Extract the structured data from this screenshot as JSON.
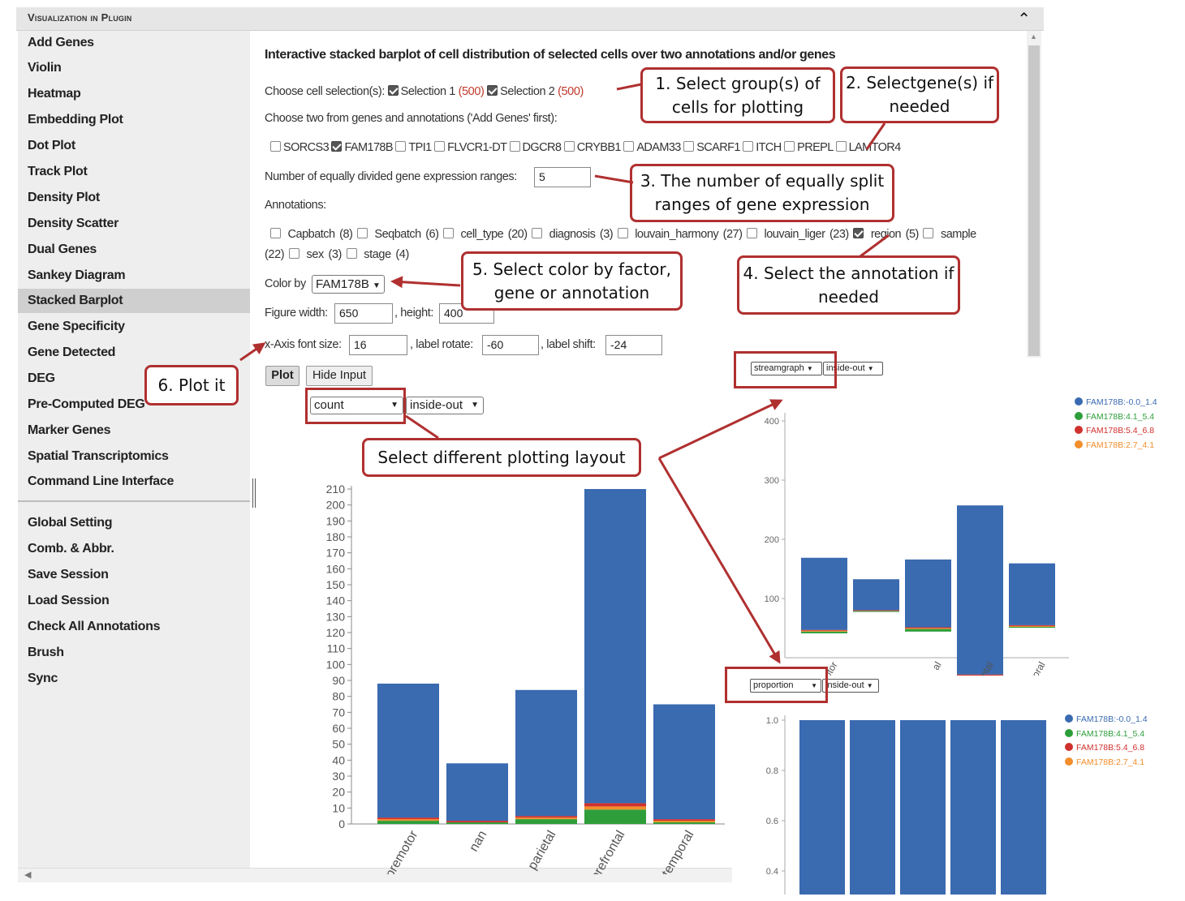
{
  "panel": {
    "title": "Visualization in Plugin"
  },
  "sidebar": {
    "items": [
      {
        "label": "Add Genes"
      },
      {
        "label": "Violin"
      },
      {
        "label": "Heatmap"
      },
      {
        "label": "Embedding Plot"
      },
      {
        "label": "Dot Plot"
      },
      {
        "label": "Track Plot"
      },
      {
        "label": "Density Plot"
      },
      {
        "label": "Density Scatter"
      },
      {
        "label": "Dual Genes"
      },
      {
        "label": "Sankey Diagram"
      },
      {
        "label": "Stacked Barplot"
      },
      {
        "label": "Gene Specificity"
      },
      {
        "label": "Gene Detected"
      },
      {
        "label": "DEG"
      },
      {
        "label": "Pre-Computed DEG"
      },
      {
        "label": "Marker Genes"
      },
      {
        "label": "Spatial Transcriptomics"
      },
      {
        "label": "Command Line Interface"
      }
    ],
    "global_items": [
      {
        "label": "Global Setting"
      },
      {
        "label": "Comb. & Abbr."
      },
      {
        "label": "Save Session"
      },
      {
        "label": "Load Session"
      },
      {
        "label": "Check All Annotations"
      },
      {
        "label": "Brush"
      },
      {
        "label": "Sync"
      }
    ],
    "active": "Stacked Barplot"
  },
  "main": {
    "heading": "Interactive stacked barplot of cell distribution of selected cells over two annotations and/or genes",
    "cell_selection": {
      "label": "Choose cell selection(s):",
      "options": [
        {
          "name": "Selection 1",
          "count": "(500)",
          "checked": true
        },
        {
          "name": "Selection 2",
          "count": "(500)",
          "checked": true
        }
      ]
    },
    "choose_two_label": "Choose two from genes and annotations ('Add Genes' first):",
    "genes": [
      {
        "name": "SORCS3",
        "checked": false
      },
      {
        "name": "FAM178B",
        "checked": true
      },
      {
        "name": "TPI1",
        "checked": false
      },
      {
        "name": "FLVCR1-DT",
        "checked": false
      },
      {
        "name": "DGCR8",
        "checked": false
      },
      {
        "name": "CRYBB1",
        "checked": false
      },
      {
        "name": "ADAM33",
        "checked": false
      },
      {
        "name": "SCARF1",
        "checked": false
      },
      {
        "name": "ITCH",
        "checked": false
      },
      {
        "name": "PREPL",
        "checked": false
      },
      {
        "name": "LAMTOR4",
        "checked": false
      }
    ],
    "ranges": {
      "label": "Number of equally divided gene expression ranges:",
      "value": "5"
    },
    "annotations_label": "Annotations:",
    "annotations": [
      {
        "name": "Capbatch (8)",
        "checked": false
      },
      {
        "name": "Seqbatch (6)",
        "checked": false
      },
      {
        "name": "cell_type (20)",
        "checked": false
      },
      {
        "name": "diagnosis (3)",
        "checked": false
      },
      {
        "name": "louvain_harmony (27)",
        "checked": false
      },
      {
        "name": "louvain_liger (23)",
        "checked": false
      },
      {
        "name": "region (5)",
        "checked": true
      },
      {
        "name": "sample",
        "checked": false
      }
    ],
    "annotations_row2": [
      {
        "prefix": "(22)",
        "name": "sex (3)",
        "checked": false
      },
      {
        "name": "stage (4)",
        "checked": false
      }
    ],
    "color_by": {
      "label": "Color by",
      "value": "FAM178B"
    },
    "figure": {
      "width_label": "Figure width:",
      "width": "650",
      "height_label": ", height:",
      "height": "400"
    },
    "axis": {
      "font_label": "x-Axis font size:",
      "font": "16",
      "rotate_label": ", label rotate:",
      "rotate": "-60",
      "shift_label": ", label shift:",
      "shift": "-24"
    },
    "buttons": {
      "plot": "Plot",
      "hide": "Hide Input"
    },
    "layout_select": {
      "mode": "count",
      "order": "inside-out"
    }
  },
  "callouts": {
    "c1": "1. Select group(s) of cells for plotting",
    "c2": "2. Selectgene(s) if needed",
    "c3": "3. The number of equally split ranges of gene expression",
    "c4": "4. Select the annotation if needed",
    "c5": "5. Select color by factor, gene or annotation",
    "c6": "6. Plot it",
    "c7": "Select different plotting layout"
  },
  "insets": {
    "stream": {
      "mode": "streamgraph",
      "order": "inside-out"
    },
    "proportion": {
      "mode": "proportion",
      "order": "inside-out"
    },
    "legend": [
      "FAM178B:-0.0_1.4",
      "FAM178B:4.1_5.4",
      "FAM178B:5.4_6.8",
      "FAM178B:2.7_4.1"
    ]
  },
  "colors": {
    "blue": "#3a6ab0",
    "green": "#2e9e3a",
    "red": "#d0312d",
    "orange": "#f28e2b",
    "callout": "#b03030"
  },
  "chart_data": [
    {
      "type": "bar",
      "stacked": true,
      "categories": [
        "motor-premotor",
        "nan",
        "parietal",
        "prefrontal",
        "temporal"
      ],
      "series": [
        {
          "name": "FAM178B:-0.0_1.4",
          "values": [
            84,
            36,
            79,
            197,
            72
          ]
        },
        {
          "name": "FAM178B:4.1_5.4",
          "values": [
            2,
            1,
            3,
            9,
            1
          ]
        },
        {
          "name": "FAM178B:5.4_6.8",
          "values": [
            1,
            1,
            1,
            2,
            1
          ]
        },
        {
          "name": "FAM178B:2.7_4.1",
          "values": [
            1,
            0,
            1,
            2,
            1
          ]
        }
      ],
      "yticks": [
        0,
        10,
        20,
        30,
        40,
        50,
        60,
        70,
        80,
        90,
        100,
        110,
        120,
        130,
        140,
        150,
        160,
        170,
        180,
        190,
        200,
        210
      ],
      "ylim": [
        0,
        210
      ],
      "colors": [
        "#3a6ab0",
        "#2e9e3a",
        "#d0312d",
        "#f28e2b"
      ]
    },
    {
      "type": "bar",
      "layout": "streamgraph",
      "categories": [
        "motor-premotor",
        "nan",
        "parietal",
        "prefrontal",
        "temporal"
      ],
      "tick_labels": [
        "motor",
        "",
        "al",
        "ntal",
        "oral"
      ],
      "series": [
        {
          "name": "FAM178B:-0.0_1.4",
          "values": [
            84,
            36,
            79,
            197,
            72
          ]
        },
        {
          "name": "FAM178B:4.1_5.4",
          "values": [
            2,
            1,
            3,
            9,
            1
          ]
        },
        {
          "name": "FAM178B:5.4_6.8",
          "values": [
            1,
            1,
            1,
            2,
            1
          ]
        },
        {
          "name": "FAM178B:2.7_4.1",
          "values": [
            1,
            0,
            1,
            2,
            1
          ]
        }
      ],
      "yticks": [
        100,
        200,
        300,
        400
      ]
    },
    {
      "type": "bar",
      "layout": "proportion",
      "categories": [
        "motor-premotor",
        "nan",
        "parietal",
        "prefrontal",
        "temporal"
      ],
      "values": [
        1.0,
        1.0,
        1.0,
        1.0,
        1.0
      ],
      "yticks": [
        "0.4",
        "0.6",
        "0.8",
        "1.0"
      ]
    }
  ]
}
